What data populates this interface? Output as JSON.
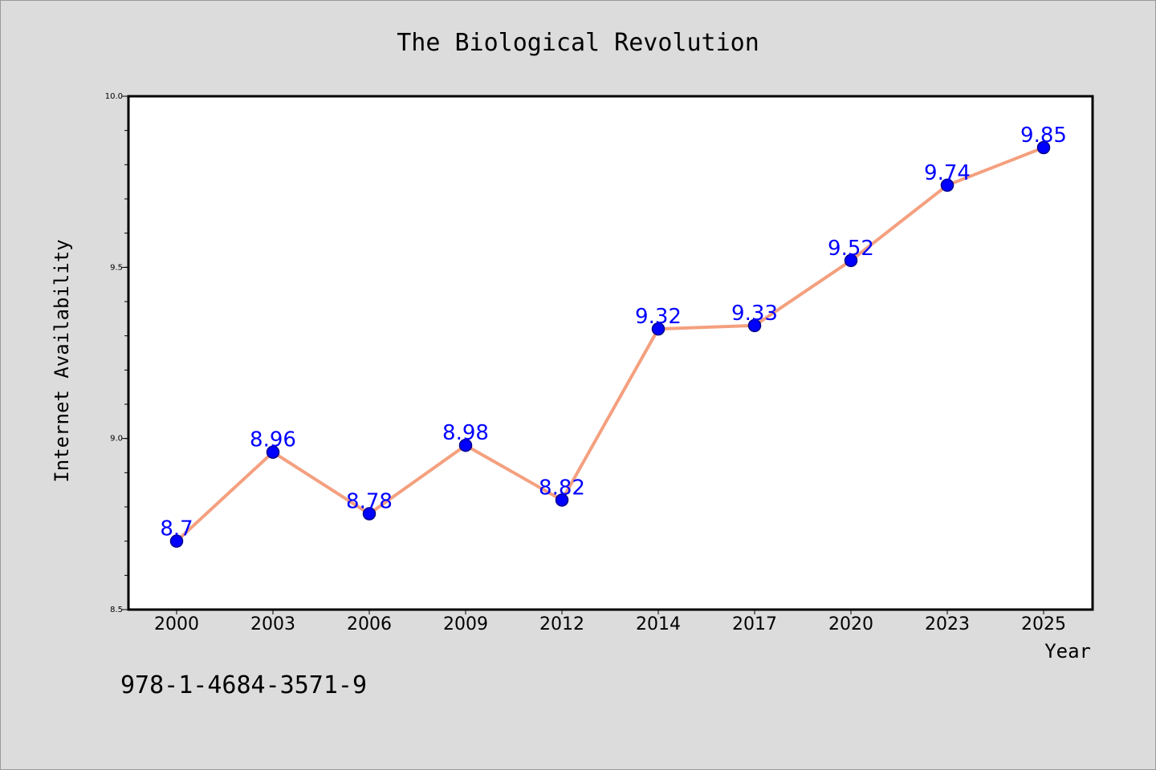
{
  "chart_data": {
    "type": "line",
    "title": "The Biological Revolution",
    "xlabel": "Year",
    "ylabel": "Internet Availability",
    "categories": [
      "2000",
      "2003",
      "2006",
      "2009",
      "2012",
      "2014",
      "2017",
      "2020",
      "2023",
      "2025"
    ],
    "values": [
      8.7,
      8.96,
      8.78,
      8.98,
      8.82,
      9.32,
      9.33,
      9.52,
      9.74,
      9.85
    ],
    "data_labels": [
      "8.7",
      "8.96",
      "8.78",
      "8.98",
      "8.82",
      "9.32",
      "9.33",
      "9.52",
      "9.74",
      "9.85"
    ],
    "ylim": [
      8.5,
      10.0
    ],
    "y_ticks": [
      8.5,
      9.0,
      9.5,
      10.0
    ],
    "y_tick_labels": [
      "8.5",
      "9.0",
      "9.5",
      "10.0"
    ],
    "grid": false,
    "legend": "none",
    "colors": {
      "line": "#f4a07f",
      "marker": "#0000ff",
      "marker_edge": "#00008b",
      "data_label": "#0000ff",
      "background": "#dcdcdc",
      "plot_background": "#ffffff"
    }
  },
  "footnote": "978-1-4684-3571-9"
}
